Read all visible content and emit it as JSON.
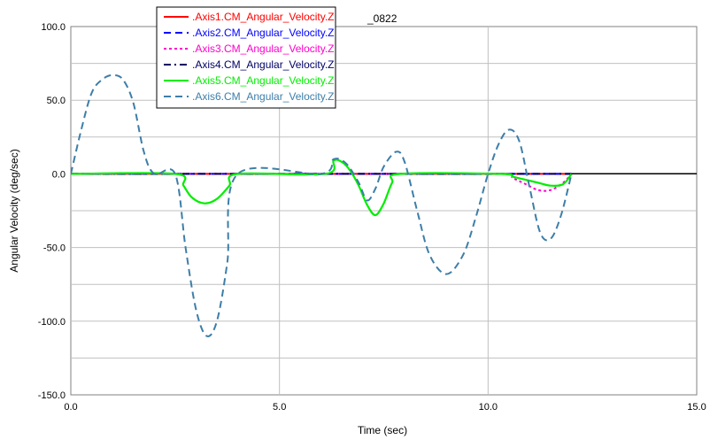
{
  "chart_data": {
    "type": "line",
    "title": "_0822",
    "xlabel": "Time (sec)",
    "ylabel": "Angular Velocity (deg/sec)",
    "xlim": [
      0,
      15
    ],
    "ylim": [
      -150,
      100
    ],
    "x_ticks": [
      "0.0",
      "5.0",
      "10.0",
      "15.0"
    ],
    "y_ticks": [
      "100.0",
      "50.0",
      "0.0",
      "-50.0",
      "-100.0",
      "-150.0"
    ],
    "grid": true,
    "legend_placement": "top-left",
    "series": [
      {
        "name": ".Axis1.CM_Angular_Velocity.Z",
        "color": "#ff0000",
        "dash": "solid",
        "x": [
          0,
          2.5,
          3.0,
          3.5,
          4.0,
          7.0,
          8.0,
          12.0
        ],
        "y": [
          0,
          0,
          0,
          0,
          0,
          0,
          0,
          0
        ]
      },
      {
        "name": ".Axis2.CM_Angular_Velocity.Z",
        "color": "#0000ff",
        "dash": "dashed",
        "x": [
          0,
          3.0,
          5.0,
          7.0,
          8.0,
          10.0,
          12.0
        ],
        "y": [
          0,
          0,
          0,
          0,
          0,
          0,
          0
        ]
      },
      {
        "name": ".Axis3.CM_Angular_Velocity.Z",
        "color": "#ff00cc",
        "dash": "dotted",
        "x": [
          0,
          2.5,
          4.0,
          7.0,
          8.0,
          10.3,
          10.6,
          10.9,
          11.2,
          11.5,
          11.8,
          12.0
        ],
        "y": [
          0,
          0,
          0,
          0,
          0,
          0,
          -3,
          -7,
          -11,
          -11,
          -6,
          0
        ]
      },
      {
        "name": ".Axis4.CM_Angular_Velocity.Z",
        "color": "#000066",
        "dash": "dashdot",
        "x": [
          0,
          3.0,
          5.0,
          7.0,
          8.0,
          10.0,
          12.0
        ],
        "y": [
          0,
          0,
          0,
          0,
          0,
          0,
          0
        ]
      },
      {
        "name": ".Axis5.CM_Angular_Velocity.Z",
        "color": "#00ee00",
        "dash": "solid",
        "x": [
          0,
          2.5,
          2.7,
          2.9,
          3.2,
          3.5,
          3.8,
          4.0,
          6.1,
          6.3,
          6.5,
          6.7,
          6.9,
          7.1,
          7.3,
          7.5,
          7.7,
          7.9,
          10.3,
          10.6,
          10.9,
          11.2,
          11.5,
          11.8,
          12.0
        ],
        "y": [
          0,
          0,
          -8,
          -16,
          -20,
          -17,
          -8,
          0,
          0,
          9,
          8,
          2,
          -8,
          -21,
          -28,
          -20,
          -6,
          0,
          0,
          -2,
          -4,
          -6,
          -8,
          -7,
          0
        ]
      },
      {
        "name": ".Axis6.CM_Angular_Velocity.Z",
        "color": "#3d7ea8",
        "dash": "dashed",
        "x": [
          0,
          0.25,
          0.5,
          0.75,
          1.0,
          1.25,
          1.5,
          1.75,
          2.0,
          2.5,
          2.75,
          3.0,
          3.25,
          3.5,
          3.75,
          4.0,
          6.0,
          6.3,
          6.6,
          6.9,
          7.1,
          7.3,
          7.5,
          7.8,
          8.0,
          8.3,
          8.6,
          9.0,
          9.4,
          9.7,
          10.0,
          10.25,
          10.5,
          10.75,
          11.0,
          11.25,
          11.5,
          11.75,
          12.0
        ],
        "y": [
          0,
          30,
          55,
          64,
          67,
          64,
          48,
          15,
          0,
          0,
          -50,
          -92,
          -110,
          -100,
          -60,
          0,
          0,
          10,
          7,
          -6,
          -18,
          -10,
          5,
          15,
          8,
          -25,
          -55,
          -68,
          -55,
          -30,
          0,
          20,
          30,
          22,
          -10,
          -40,
          -44,
          -28,
          0
        ]
      }
    ]
  }
}
